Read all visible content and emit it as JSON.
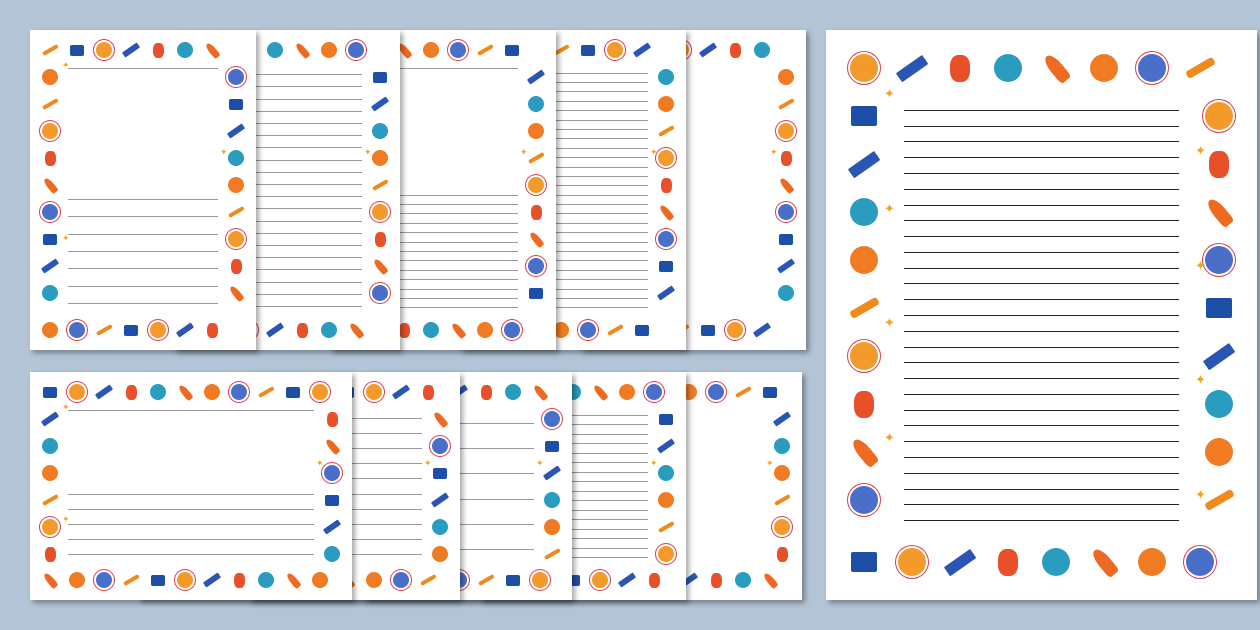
{
  "colors": {
    "background": "#b2c4d6",
    "page": "#ffffff"
  },
  "icon_sequence": [
    {
      "name": "telescope-icon",
      "type": "tele",
      "color": "#f08a1c"
    },
    {
      "name": "rover-icon",
      "type": "rover",
      "color": "#1e4fa8"
    },
    {
      "name": "ringed-planet-icon",
      "type": "planet",
      "color": "#f39a2a"
    },
    {
      "name": "satellite-icon",
      "type": "sat",
      "color": "#2a55b5"
    },
    {
      "name": "astronaut-icon",
      "type": "astro",
      "color": "#e8502a"
    },
    {
      "name": "blue-planet-icon",
      "type": "planet",
      "color": "#2a9cc0"
    },
    {
      "name": "rocket-icon",
      "type": "rocket",
      "color": "#ee6a22"
    },
    {
      "name": "orange-planet-icon",
      "type": "planet",
      "color": "#f07b22"
    },
    {
      "name": "saturn-icon",
      "type": "planet",
      "color": "#4a6fc8"
    }
  ],
  "pages": [
    {
      "group": "portrait",
      "lines": 7,
      "top_line": true
    },
    {
      "group": "portrait",
      "lines": 20
    },
    {
      "group": "portrait",
      "lines": 13,
      "top_line": true
    },
    {
      "group": "portrait",
      "lines": 26
    },
    {
      "group": "portrait",
      "lines": 0
    },
    {
      "group": "landscape",
      "lines": 5,
      "top_line": true
    },
    {
      "group": "landscape",
      "lines": 10
    },
    {
      "group": "landscape",
      "lines": 6
    },
    {
      "group": "landscape",
      "lines": 16
    },
    {
      "group": "landscape",
      "lines": 0
    },
    {
      "group": "featured",
      "lines": 27
    }
  ]
}
